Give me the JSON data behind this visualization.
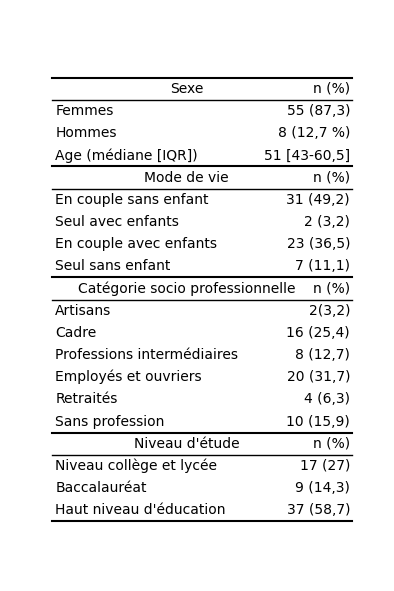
{
  "rows": [
    {
      "left": "Sexe",
      "right": "n (%)",
      "type": "header"
    },
    {
      "left": "Femmes",
      "right": "55 (87,3)",
      "type": "data"
    },
    {
      "left": "Hommes",
      "right": "8 (12,7 %)",
      "type": "data"
    },
    {
      "left": "Age (médiane [IQR])",
      "right": "51 [43-60,5]",
      "type": "data"
    },
    {
      "left": "Mode de vie",
      "right": "n (%)",
      "type": "header"
    },
    {
      "left": "En couple sans enfant",
      "right": "31 (49,2)",
      "type": "data"
    },
    {
      "left": "Seul avec enfants",
      "right": "2 (3,2)",
      "type": "data"
    },
    {
      "left": "En couple avec enfants",
      "right": "23 (36,5)",
      "type": "data"
    },
    {
      "left": "Seul sans enfant",
      "right": "7 (11,1)",
      "type": "data"
    },
    {
      "left": "Catégorie socio professionnelle",
      "right": "n (%)",
      "type": "header"
    },
    {
      "left": "Artisans",
      "right": "2(3,2)",
      "type": "data"
    },
    {
      "left": "Cadre",
      "right": "16 (25,4)",
      "type": "data"
    },
    {
      "left": "Professions intermédiaires",
      "right": "8 (12,7)",
      "type": "data"
    },
    {
      "left": "Employés et ouvriers",
      "right": "20 (31,7)",
      "type": "data"
    },
    {
      "left": "Retraités",
      "right": "4 (6,3)",
      "type": "data"
    },
    {
      "left": "Sans profession",
      "right": "10 (15,9)",
      "type": "data"
    },
    {
      "left": "Niveau d'étude",
      "right": "n (%)",
      "type": "header"
    },
    {
      "left": "Niveau collège et lycée",
      "right": "17 (27)",
      "type": "data"
    },
    {
      "left": "Baccalauréat",
      "right": "9 (14,3)",
      "type": "data"
    },
    {
      "left": "Haut niveau d'éducation",
      "right": "37 (58,7)",
      "type": "data"
    }
  ],
  "bg_color": "#ffffff",
  "text_color": "#000000",
  "font_size": 10,
  "line_color": "#000000",
  "header_indices": [
    0,
    4,
    9,
    16
  ]
}
